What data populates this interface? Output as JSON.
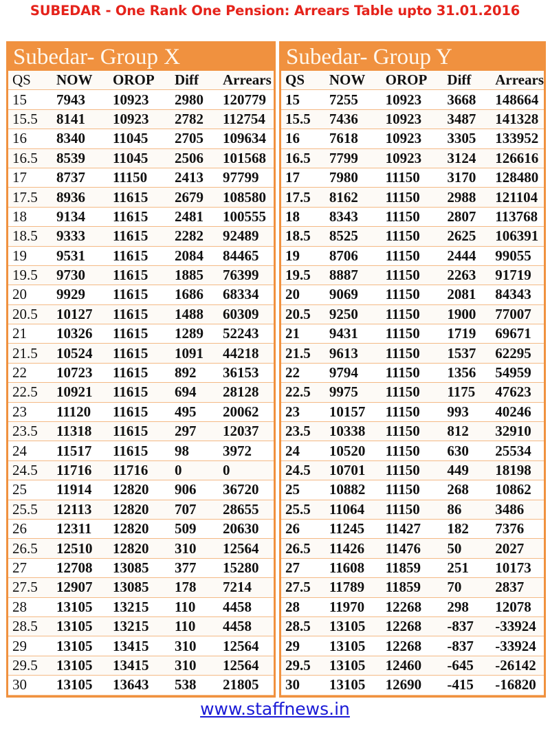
{
  "title": "SUBEDAR - One Rank One Pension: Arrears Table upto 31.01.2016",
  "columns": [
    "QS",
    "NOW",
    "OROP",
    "Diff",
    "Arrears"
  ],
  "colors": {
    "accent": "#f0913f",
    "title": "#e5231b",
    "link": "#1a1ad6"
  },
  "group_x": {
    "heading": "Subedar- Group X",
    "rows": [
      [
        "15",
        "7943",
        "10923",
        "2980",
        "120779"
      ],
      [
        "15.5",
        "8141",
        "10923",
        "2782",
        "112754"
      ],
      [
        "16",
        "8340",
        "11045",
        "2705",
        "109634"
      ],
      [
        "16.5",
        "8539",
        "11045",
        "2506",
        "101568"
      ],
      [
        "17",
        "8737",
        "11150",
        "2413",
        "97799"
      ],
      [
        "17.5",
        "8936",
        "11615",
        "2679",
        "108580"
      ],
      [
        "18",
        "9134",
        "11615",
        "2481",
        "100555"
      ],
      [
        "18.5",
        "9333",
        "11615",
        "2282",
        "92489"
      ],
      [
        "19",
        "9531",
        "11615",
        "2084",
        "84465"
      ],
      [
        "19.5",
        "9730",
        "11615",
        "1885",
        "76399"
      ],
      [
        "20",
        "9929",
        "11615",
        "1686",
        "68334"
      ],
      [
        "20.5",
        "10127",
        "11615",
        "1488",
        "60309"
      ],
      [
        "21",
        "10326",
        "11615",
        "1289",
        "52243"
      ],
      [
        "21.5",
        "10524",
        "11615",
        "1091",
        "44218"
      ],
      [
        "22",
        "10723",
        "11615",
        "892",
        "36153"
      ],
      [
        "22.5",
        "10921",
        "11615",
        "694",
        "28128"
      ],
      [
        "23",
        "11120",
        "11615",
        "495",
        "20062"
      ],
      [
        "23.5",
        "11318",
        "11615",
        "297",
        "12037"
      ],
      [
        "24",
        "11517",
        "11615",
        "98",
        "3972"
      ],
      [
        "24.5",
        "11716",
        "11716",
        "0",
        "0"
      ],
      [
        "25",
        "11914",
        "12820",
        "906",
        "36720"
      ],
      [
        "25.5",
        "12113",
        "12820",
        "707",
        "28655"
      ],
      [
        "26",
        "12311",
        "12820",
        "509",
        "20630"
      ],
      [
        "26.5",
        "12510",
        "12820",
        "310",
        "12564"
      ],
      [
        "27",
        "12708",
        "13085",
        "377",
        "15280"
      ],
      [
        "27.5",
        "12907",
        "13085",
        "178",
        "7214"
      ],
      [
        "28",
        "13105",
        "13215",
        "110",
        "4458"
      ],
      [
        "28.5",
        "13105",
        "13215",
        "110",
        "4458"
      ],
      [
        "29",
        "13105",
        "13415",
        "310",
        "12564"
      ],
      [
        "29.5",
        "13105",
        "13415",
        "310",
        "12564"
      ],
      [
        "30",
        "13105",
        "13643",
        "538",
        "21805"
      ]
    ]
  },
  "group_y": {
    "heading": "Subedar- Group Y",
    "rows": [
      [
        "15",
        "7255",
        "10923",
        "3668",
        "148664"
      ],
      [
        "15.5",
        "7436",
        "10923",
        "3487",
        "141328"
      ],
      [
        "16",
        "7618",
        "10923",
        "3305",
        "133952"
      ],
      [
        "16.5",
        "7799",
        "10923",
        "3124",
        "126616"
      ],
      [
        "17",
        "7980",
        "11150",
        "3170",
        "128480"
      ],
      [
        "17.5",
        "8162",
        "11150",
        "2988",
        "121104"
      ],
      [
        "18",
        "8343",
        "11150",
        "2807",
        "113768"
      ],
      [
        "18.5",
        "8525",
        "11150",
        "2625",
        "106391"
      ],
      [
        "19",
        "8706",
        "11150",
        "2444",
        "99055"
      ],
      [
        "19.5",
        "8887",
        "11150",
        "2263",
        "91719"
      ],
      [
        "20",
        "9069",
        "11150",
        "2081",
        "84343"
      ],
      [
        "20.5",
        "9250",
        "11150",
        "1900",
        "77007"
      ],
      [
        "21",
        "9431",
        "11150",
        "1719",
        "69671"
      ],
      [
        "21.5",
        "9613",
        "11150",
        "1537",
        "62295"
      ],
      [
        "22",
        "9794",
        "11150",
        "1356",
        "54959"
      ],
      [
        "22.5",
        "9975",
        "11150",
        "1175",
        "47623"
      ],
      [
        "23",
        "10157",
        "11150",
        "993",
        "40246"
      ],
      [
        "23.5",
        "10338",
        "11150",
        "812",
        "32910"
      ],
      [
        "24",
        "10520",
        "11150",
        "630",
        "25534"
      ],
      [
        "24.5",
        "10701",
        "11150",
        "449",
        "18198"
      ],
      [
        "25",
        "10882",
        "11150",
        "268",
        "10862"
      ],
      [
        "25.5",
        "11064",
        "11150",
        "86",
        "3486"
      ],
      [
        "26",
        "11245",
        "11427",
        "182",
        "7376"
      ],
      [
        "26.5",
        "11426",
        "11476",
        "50",
        "2027"
      ],
      [
        "27",
        "11608",
        "11859",
        "251",
        "10173"
      ],
      [
        "27.5",
        "11789",
        "11859",
        "70",
        "2837"
      ],
      [
        "28",
        "11970",
        "12268",
        "298",
        "12078"
      ],
      [
        "28.5",
        "13105",
        "12268",
        "-837",
        "-33924"
      ],
      [
        "29",
        "13105",
        "12268",
        "-837",
        "-33924"
      ],
      [
        "29.5",
        "13105",
        "12460",
        "-645",
        "-26142"
      ],
      [
        "30",
        "13105",
        "12690",
        "-415",
        "-16820"
      ]
    ]
  },
  "footer": {
    "link": "www.staffnews.in"
  }
}
